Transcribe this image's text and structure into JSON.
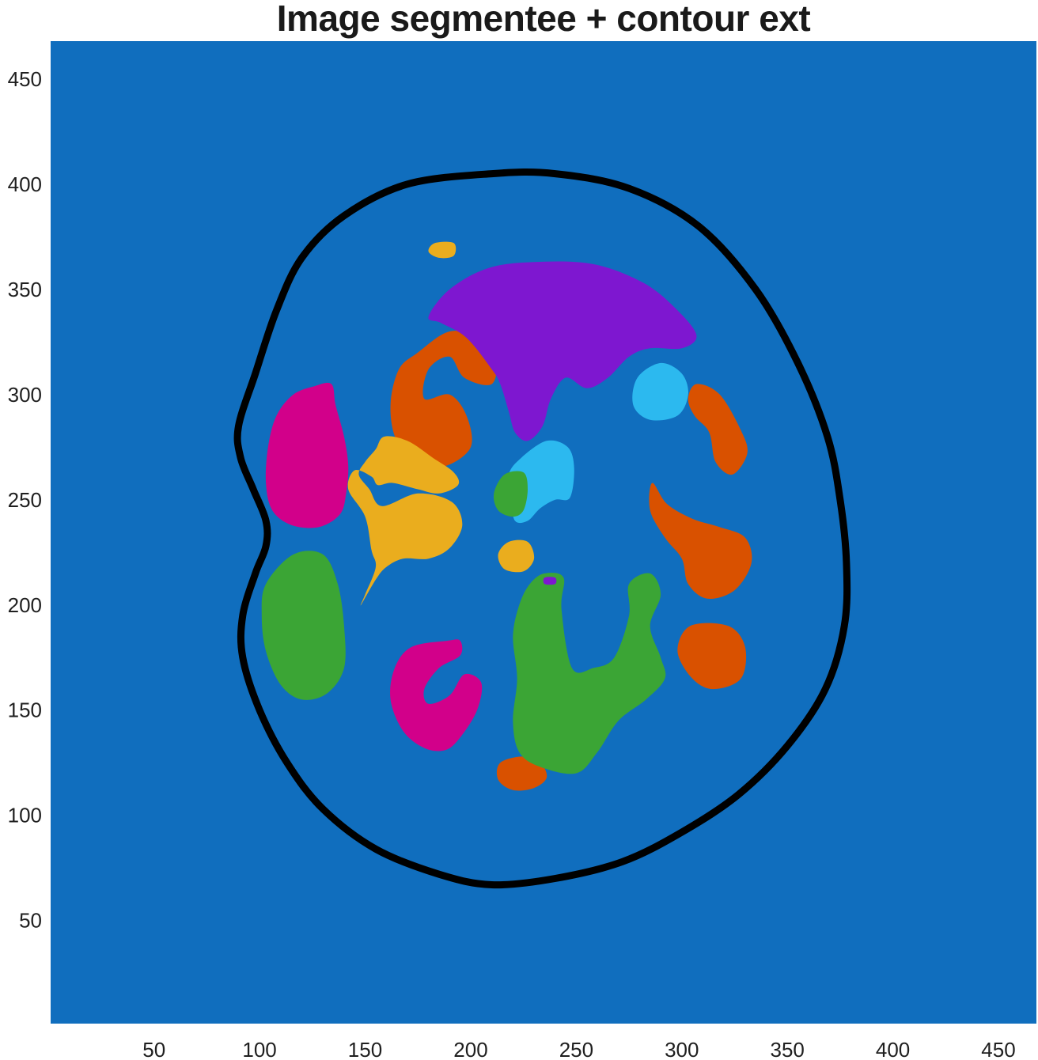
{
  "chart_data": {
    "type": "heatmap",
    "title": "Image segmentee + contour ext",
    "xlabel": "",
    "ylabel": "",
    "xlim": [
      1,
      468
    ],
    "ylim": [
      1,
      468
    ],
    "xticks": [
      50,
      100,
      150,
      200,
      250,
      300,
      350,
      400,
      450
    ],
    "yticks": [
      50,
      100,
      150,
      200,
      250,
      300,
      350,
      400,
      450
    ],
    "grid": false,
    "colors": {
      "background": "#106EBE",
      "contour": "#000000",
      "orange": "#D95100",
      "purple": "#7E17D0",
      "cyan": "#2CB9EF",
      "magenta": "#D2008A",
      "yellow": "#EAAD1E",
      "green": "#3BA535"
    },
    "contour": [
      [
        210,
        405
      ],
      [
        170,
        400
      ],
      [
        140,
        385
      ],
      [
        120,
        365
      ],
      [
        108,
        340
      ],
      [
        98,
        310
      ],
      [
        90,
        285
      ],
      [
        91,
        270
      ],
      [
        97,
        255
      ],
      [
        103,
        240
      ],
      [
        103,
        228
      ],
      [
        98,
        215
      ],
      [
        92,
        195
      ],
      [
        92,
        175
      ],
      [
        100,
        150
      ],
      [
        113,
        125
      ],
      [
        130,
        103
      ],
      [
        155,
        84
      ],
      [
        185,
        72
      ],
      [
        210,
        67
      ],
      [
        240,
        70
      ],
      [
        272,
        78
      ],
      [
        300,
        92
      ],
      [
        327,
        110
      ],
      [
        350,
        133
      ],
      [
        368,
        160
      ],
      [
        377,
        190
      ],
      [
        378,
        220
      ],
      [
        375,
        250
      ],
      [
        369,
        280
      ],
      [
        355,
        315
      ],
      [
        335,
        350
      ],
      [
        308,
        380
      ],
      [
        275,
        398
      ],
      [
        240,
        405
      ],
      [
        210,
        405
      ]
    ],
    "regions": [
      {
        "color": "orange",
        "points": [
          [
            175,
            320
          ],
          [
            190,
            330
          ],
          [
            205,
            327
          ],
          [
            212,
            318
          ],
          [
            210,
            305
          ],
          [
            197,
            308
          ],
          [
            190,
            318
          ],
          [
            180,
            312
          ],
          [
            178,
            298
          ],
          [
            190,
            300
          ],
          [
            198,
            290
          ],
          [
            200,
            275
          ],
          [
            188,
            266
          ],
          [
            176,
            268
          ],
          [
            165,
            278
          ],
          [
            162,
            295
          ],
          [
            166,
            312
          ]
        ]
      },
      {
        "color": "orange",
        "points": [
          [
            307,
            305
          ],
          [
            318,
            300
          ],
          [
            328,
            283
          ],
          [
            331,
            272
          ],
          [
            324,
            262
          ],
          [
            316,
            268
          ],
          [
            313,
            282
          ],
          [
            306,
            290
          ],
          [
            303,
            298
          ]
        ]
      },
      {
        "color": "orange",
        "points": [
          [
            286,
            258
          ],
          [
            293,
            248
          ],
          [
            305,
            241
          ],
          [
            318,
            237
          ],
          [
            330,
            232
          ],
          [
            333,
            220
          ],
          [
            325,
            207
          ],
          [
            312,
            203
          ],
          [
            303,
            210
          ],
          [
            300,
            222
          ],
          [
            292,
            232
          ],
          [
            285,
            245
          ]
        ]
      },
      {
        "color": "orange",
        "points": [
          [
            304,
            190
          ],
          [
            322,
            190
          ],
          [
            330,
            180
          ],
          [
            328,
            165
          ],
          [
            315,
            160
          ],
          [
            305,
            165
          ],
          [
            298,
            178
          ]
        ]
      },
      {
        "color": "orange",
        "points": [
          [
            225,
            128
          ],
          [
            233,
            125
          ],
          [
            236,
            118
          ],
          [
            230,
            113
          ],
          [
            220,
            112
          ],
          [
            213,
            117
          ],
          [
            214,
            125
          ]
        ]
      },
      {
        "color": "purple",
        "points": [
          [
            180,
            337
          ],
          [
            190,
            350
          ],
          [
            208,
            360
          ],
          [
            230,
            363
          ],
          [
            258,
            362
          ],
          [
            282,
            353
          ],
          [
            298,
            340
          ],
          [
            307,
            328
          ],
          [
            300,
            322
          ],
          [
            285,
            322
          ],
          [
            275,
            318
          ],
          [
            265,
            308
          ],
          [
            255,
            303
          ],
          [
            245,
            308
          ],
          [
            238,
            298
          ],
          [
            234,
            285
          ],
          [
            227,
            278
          ],
          [
            221,
            282
          ],
          [
            218,
            292
          ],
          [
            214,
            305
          ],
          [
            210,
            312
          ],
          [
            198,
            327
          ],
          [
            186,
            334
          ]
        ]
      },
      {
        "color": "cyan",
        "points": [
          [
            290,
            315
          ],
          [
            300,
            310
          ],
          [
            303,
            300
          ],
          [
            298,
            290
          ],
          [
            285,
            288
          ],
          [
            277,
            295
          ],
          [
            279,
            308
          ]
        ]
      },
      {
        "color": "cyan",
        "points": [
          [
            236,
            278
          ],
          [
            246,
            275
          ],
          [
            249,
            265
          ],
          [
            247,
            251
          ],
          [
            240,
            250
          ],
          [
            233,
            246
          ],
          [
            227,
            240
          ],
          [
            221,
            240
          ],
          [
            219,
            250
          ],
          [
            218,
            262
          ],
          [
            224,
            270
          ]
        ]
      },
      {
        "color": "magenta",
        "points": [
          [
            126,
            304
          ],
          [
            134,
            305
          ],
          [
            136,
            295
          ],
          [
            140,
            280
          ],
          [
            142,
            266
          ],
          [
            141,
            253
          ],
          [
            138,
            243
          ],
          [
            128,
            237
          ],
          [
            115,
            238
          ],
          [
            106,
            245
          ],
          [
            103,
            258
          ],
          [
            104,
            275
          ],
          [
            108,
            290
          ],
          [
            116,
            300
          ]
        ]
      },
      {
        "color": "magenta",
        "points": [
          [
            158,
            233
          ],
          [
            162,
            232
          ],
          [
            163,
            228
          ],
          [
            160,
            224
          ],
          [
            155,
            225
          ],
          [
            153,
            229
          ]
        ]
      },
      {
        "color": "magenta",
        "points": [
          [
            189,
            183
          ],
          [
            195,
            183
          ],
          [
            195,
            176
          ],
          [
            185,
            170
          ],
          [
            178,
            160
          ],
          [
            180,
            153
          ],
          [
            190,
            157
          ],
          [
            197,
            167
          ],
          [
            205,
            163
          ],
          [
            203,
            150
          ],
          [
            195,
            137
          ],
          [
            188,
            131
          ],
          [
            178,
            132
          ],
          [
            168,
            140
          ],
          [
            162,
            155
          ],
          [
            164,
            170
          ],
          [
            172,
            180
          ]
        ]
      },
      {
        "color": "yellow",
        "points": [
          [
            183,
            372
          ],
          [
            192,
            372
          ],
          [
            192,
            366
          ],
          [
            185,
            365
          ],
          [
            180,
            368
          ]
        ]
      },
      {
        "color": "yellow",
        "points": [
          [
            159,
            280
          ],
          [
            170,
            278
          ],
          [
            182,
            270
          ],
          [
            192,
            263
          ],
          [
            194,
            257
          ],
          [
            185,
            253
          ],
          [
            175,
            255
          ],
          [
            163,
            258
          ],
          [
            156,
            257
          ],
          [
            153,
            261
          ],
          [
            145,
            264
          ],
          [
            142,
            255
          ],
          [
            150,
            242
          ],
          [
            153,
            226
          ],
          [
            155,
            218
          ],
          [
            150,
            205
          ],
          [
            148,
            200
          ],
          [
            155,
            212
          ],
          [
            160,
            218
          ],
          [
            168,
            222
          ],
          [
            180,
            222
          ],
          [
            190,
            227
          ],
          [
            196,
            238
          ],
          [
            191,
            249
          ],
          [
            175,
            253
          ],
          [
            158,
            247
          ],
          [
            152,
            255
          ],
          [
            147,
            262
          ],
          [
            150,
            268
          ],
          [
            155,
            274
          ]
        ]
      },
      {
        "color": "yellow",
        "points": [
          [
            218,
            230
          ],
          [
            227,
            230
          ],
          [
            230,
            222
          ],
          [
            225,
            216
          ],
          [
            216,
            217
          ],
          [
            213,
            224
          ]
        ]
      },
      {
        "color": "green",
        "points": [
          [
            216,
            262
          ],
          [
            225,
            263
          ],
          [
            227,
            255
          ],
          [
            225,
            245
          ],
          [
            220,
            242
          ],
          [
            213,
            245
          ],
          [
            211,
            253
          ]
        ]
      },
      {
        "color": "green",
        "points": [
          [
            116,
            224
          ],
          [
            130,
            224
          ],
          [
            137,
            210
          ],
          [
            140,
            190
          ],
          [
            140,
            170
          ],
          [
            132,
            158
          ],
          [
            120,
            155
          ],
          [
            110,
            162
          ],
          [
            103,
            178
          ],
          [
            101,
            195
          ],
          [
            103,
            210
          ]
        ]
      },
      {
        "color": "green",
        "points": [
          [
            235,
            215
          ],
          [
            244,
            213
          ],
          [
            243,
            198
          ],
          [
            248,
            170
          ],
          [
            258,
            170
          ],
          [
            268,
            175
          ],
          [
            275,
            195
          ],
          [
            275,
            210
          ],
          [
            285,
            215
          ],
          [
            290,
            205
          ],
          [
            285,
            190
          ],
          [
            290,
            175
          ],
          [
            292,
            165
          ],
          [
            283,
            155
          ],
          [
            270,
            145
          ],
          [
            260,
            130
          ],
          [
            250,
            120
          ],
          [
            233,
            123
          ],
          [
            223,
            130
          ],
          [
            220,
            145
          ],
          [
            222,
            165
          ],
          [
            220,
            185
          ],
          [
            223,
            200
          ],
          [
            228,
            210
          ]
        ]
      },
      {
        "color": "purple",
        "points": [
          [
            235,
            213
          ],
          [
            240,
            213
          ],
          [
            240,
            210
          ],
          [
            235,
            210
          ]
        ]
      }
    ]
  }
}
